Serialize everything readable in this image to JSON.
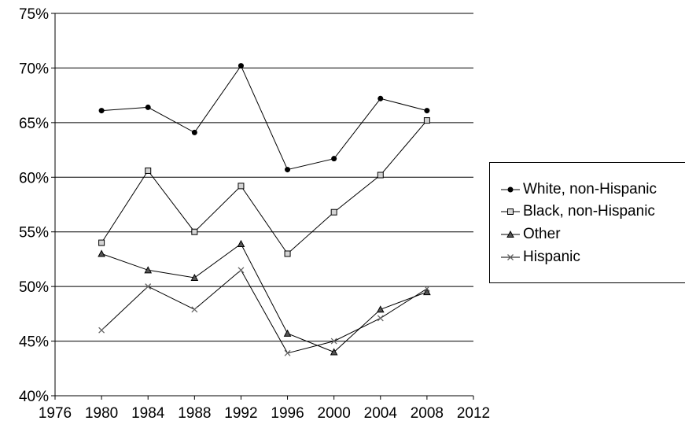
{
  "chart_data": {
    "type": "line",
    "x": [
      1980,
      1984,
      1988,
      1992,
      1996,
      2000,
      2004,
      2008
    ],
    "x_ticks": [
      "1976",
      "1980",
      "1984",
      "1988",
      "1992",
      "1996",
      "2000",
      "2004",
      "2008",
      "2012"
    ],
    "y_ticks": [
      "40%",
      "45%",
      "50%",
      "55%",
      "60%",
      "65%",
      "70%",
      "75%"
    ],
    "xlim": [
      1976,
      2012
    ],
    "ylim": [
      40,
      75
    ],
    "grid": "horizontal",
    "legend_position": "right",
    "series": [
      {
        "name": "White, non-Hispanic",
        "marker": "circle",
        "color": "#000000",
        "values": [
          66.1,
          66.4,
          64.1,
          70.2,
          60.7,
          61.7,
          67.2,
          66.1
        ]
      },
      {
        "name": "Black, non-Hispanic",
        "marker": "square",
        "color": "#000000",
        "values": [
          54.0,
          60.6,
          55.0,
          59.2,
          53.0,
          56.8,
          60.2,
          65.2
        ]
      },
      {
        "name": "Other",
        "marker": "triangle",
        "color": "#000000",
        "values": [
          53.0,
          51.5,
          50.8,
          53.9,
          45.7,
          44.0,
          47.9,
          49.5
        ]
      },
      {
        "name": "Hispanic",
        "marker": "x",
        "color": "#000000",
        "values": [
          46.0,
          50.0,
          47.9,
          51.5,
          43.9,
          45.0,
          47.1,
          49.8
        ]
      }
    ]
  }
}
